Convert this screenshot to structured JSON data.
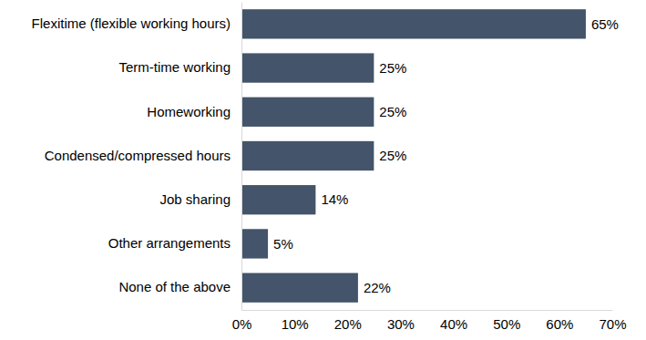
{
  "chart_data": {
    "type": "bar",
    "orientation": "horizontal",
    "categories": [
      "Flexitime (flexible working hours)",
      "Term-time working",
      "Homeworking",
      "Condensed/compressed hours",
      "Job sharing",
      "Other arrangements",
      "None of the above"
    ],
    "values": [
      65,
      25,
      25,
      25,
      14,
      5,
      22
    ],
    "value_labels": [
      "65%",
      "25%",
      "25%",
      "25%",
      "14%",
      "5%",
      "22%"
    ],
    "data_labels": true,
    "color": "#44546a",
    "xlim": [
      0,
      70
    ],
    "xticks": [
      {
        "value": 0,
        "label": "0%"
      },
      {
        "value": 10,
        "label": "10%"
      },
      {
        "value": 20,
        "label": "20%"
      },
      {
        "value": 30,
        "label": "30%"
      },
      {
        "value": 40,
        "label": "40%"
      },
      {
        "value": 50,
        "label": "50%"
      },
      {
        "value": 60,
        "label": "60%"
      },
      {
        "value": 70,
        "label": "70%"
      }
    ],
    "grid": false
  }
}
